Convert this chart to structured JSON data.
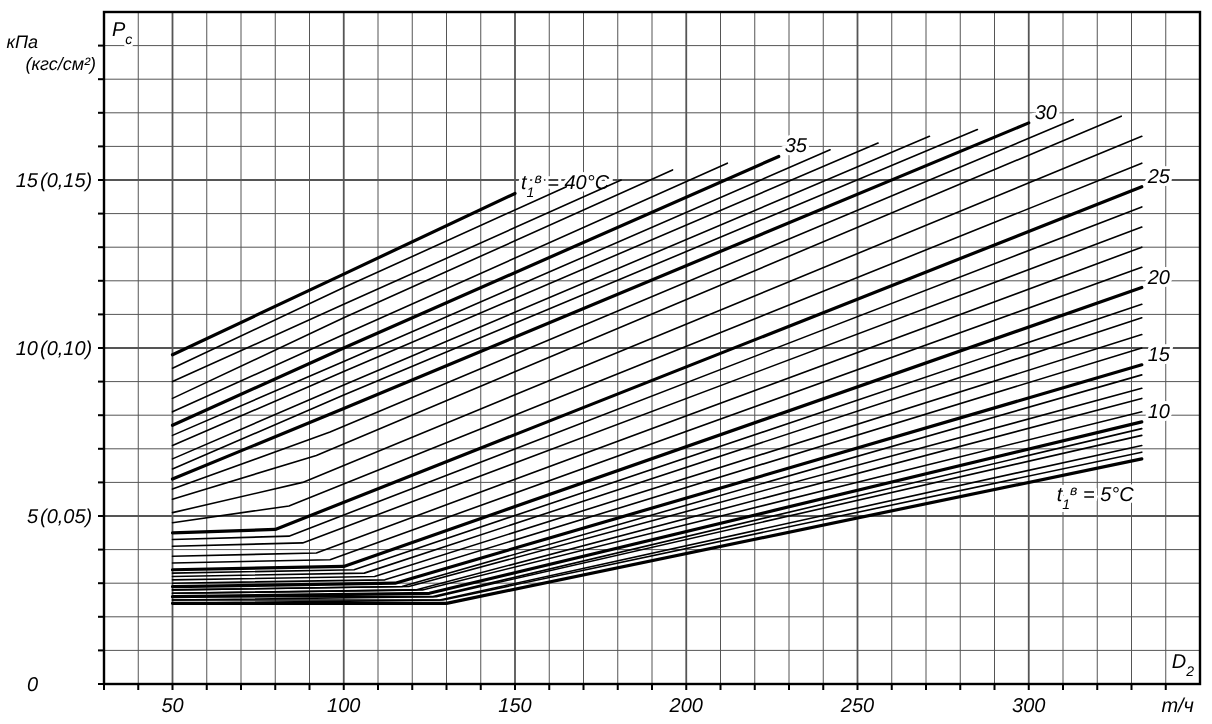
{
  "chart_data": {
    "type": "line",
    "ylabel": "кПа",
    "y2label": "(кгс/см²)",
    "xlabel": "D$_{2}$ т/ч",
    "annotations": [
      "P$_{c}$"
    ],
    "xlim": [
      30,
      350
    ],
    "ylim": [
      0,
      20
    ],
    "xticks": [
      {
        "value": 30,
        "label": null
      },
      {
        "value": 40,
        "label": null
      },
      50,
      {
        "value": 60,
        "label": null
      },
      {
        "value": 70,
        "label": null
      },
      {
        "value": 80,
        "label": null
      },
      {
        "value": 90,
        "label": null
      },
      100,
      {
        "value": 110,
        "label": null
      },
      {
        "value": 120,
        "label": null
      },
      {
        "value": 130,
        "label": null
      },
      {
        "value": 140,
        "label": null
      },
      150,
      {
        "value": 160,
        "label": null
      },
      {
        "value": 170,
        "label": null
      },
      {
        "value": 180,
        "label": null
      },
      {
        "value": 190,
        "label": null
      },
      200,
      {
        "value": 210,
        "label": null
      },
      {
        "value": 220,
        "label": null
      },
      {
        "value": 230,
        "label": null
      },
      {
        "value": 240,
        "label": null
      },
      250,
      {
        "value": 260,
        "label": null
      },
      {
        "value": 270,
        "label": null
      },
      {
        "value": 280,
        "label": null
      },
      {
        "value": 290,
        "label": null
      },
      300,
      {
        "value": 310,
        "label": null
      },
      {
        "value": 320,
        "label": null
      },
      {
        "value": 330,
        "label": null
      },
      {
        "value": 340,
        "label": null
      }
    ],
    "yticks": [
      0,
      {
        "value": 1,
        "label": null
      },
      {
        "value": 2,
        "label": null
      },
      {
        "value": 3,
        "label": null
      },
      {
        "value": 4,
        "label": null
      },
      5,
      {
        "value": 6,
        "label": null
      },
      {
        "value": 7,
        "label": null
      },
      {
        "value": 8,
        "label": null
      },
      {
        "value": 9,
        "label": null
      },
      10,
      {
        "value": 11,
        "label": null
      },
      {
        "value": 12,
        "label": null
      },
      {
        "value": 13,
        "label": null
      },
      {
        "value": 14,
        "label": null
      },
      15,
      {
        "value": 16,
        "label": null
      },
      {
        "value": 17,
        "label": null
      },
      {
        "value": 18,
        "label": null
      },
      {
        "value": 19,
        "label": null
      }
    ],
    "y2lim": [
      0,
      0.2
    ],
    "y2ticks": [
      {
        "value": 0.05,
        "label": "(0,05)"
      },
      {
        "value": 0.1,
        "label": "(0,10)"
      },
      {
        "value": 0.15,
        "label": "(0,15)"
      }
    ],
    "grid": true,
    "marker": "none",
    "line_style": "solid",
    "series": [
      {
        "name": "t$_{1}$$^{в}$ = 40°C",
        "color": "#000000",
        "x": [
          50,
          100,
          150
        ],
        "values": [
          9.8,
          12.2,
          14.6
        ]
      },
      {
        "color": "#000000",
        "x": [
          50,
          100,
          165
        ],
        "values": [
          9.4,
          11.8,
          14.8
        ]
      },
      {
        "color": "#000000",
        "x": [
          50,
          100,
          181
        ],
        "values": [
          9.0,
          11.3,
          15.0
        ]
      },
      {
        "color": "#000000",
        "x": [
          50,
          100,
          196
        ],
        "values": [
          8.5,
          10.9,
          15.3
        ]
      },
      {
        "color": "#000000",
        "x": [
          50,
          100,
          212
        ],
        "values": [
          8.1,
          10.4,
          15.5
        ]
      },
      {
        "name": "35",
        "color": "#000000",
        "x": [
          50,
          100,
          227
        ],
        "values": [
          7.7,
          10.0,
          15.7
        ]
      },
      {
        "color": "#000000",
        "x": [
          50,
          100,
          242
        ],
        "values": [
          7.4,
          9.6,
          15.9
        ]
      },
      {
        "color": "#000000",
        "x": [
          50,
          100,
          256
        ],
        "values": [
          7.1,
          9.3,
          16.1
        ]
      },
      {
        "color": "#000000",
        "x": [
          50,
          100,
          271
        ],
        "values": [
          6.7,
          8.9,
          16.3
        ]
      },
      {
        "color": "#000000",
        "x": [
          50,
          100,
          285
        ],
        "values": [
          6.4,
          8.6,
          16.5
        ]
      },
      {
        "name": "30",
        "color": "#000000",
        "x": [
          50,
          100,
          300
        ],
        "values": [
          6.1,
          8.2,
          16.7
        ]
      },
      {
        "color": "#000000",
        "x": [
          50,
          96,
          313
        ],
        "values": [
          5.8,
          7.5,
          16.8
        ]
      },
      {
        "color": "#000000",
        "x": [
          50,
          92,
          327
        ],
        "values": [
          5.5,
          6.8,
          16.9
        ]
      },
      {
        "color": "#000000",
        "x": [
          50,
          88,
          333
        ],
        "values": [
          5.1,
          6.0,
          16.3
        ]
      },
      {
        "color": "#000000",
        "x": [
          50,
          84,
          333
        ],
        "values": [
          4.8,
          5.3,
          15.5
        ]
      },
      {
        "name": "25",
        "color": "#000000",
        "x": [
          50,
          80,
          333
        ],
        "values": [
          4.5,
          4.6,
          14.8
        ]
      },
      {
        "color": "#000000",
        "x": [
          50,
          84,
          333
        ],
        "values": [
          4.3,
          4.4,
          14.2
        ]
      },
      {
        "color": "#000000",
        "x": [
          50,
          88,
          333
        ],
        "values": [
          4.1,
          4.2,
          13.6
        ]
      },
      {
        "color": "#000000",
        "x": [
          50,
          92,
          333
        ],
        "values": [
          3.8,
          3.9,
          13.0
        ]
      },
      {
        "color": "#000000",
        "x": [
          50,
          96,
          333
        ],
        "values": [
          3.6,
          3.7,
          12.4
        ]
      },
      {
        "name": "20",
        "color": "#000000",
        "x": [
          50,
          100,
          333
        ],
        "values": [
          3.4,
          3.5,
          11.8
        ]
      },
      {
        "color": "#000000",
        "x": [
          50,
          103,
          333
        ],
        "values": [
          3.3,
          3.4,
          11.3
        ]
      },
      {
        "color": "#000000",
        "x": [
          50,
          106,
          333
        ],
        "values": [
          3.2,
          3.3,
          10.9
        ]
      },
      {
        "color": "#000000",
        "x": [
          50,
          109,
          333
        ],
        "values": [
          3.1,
          3.2,
          10.4
        ]
      },
      {
        "color": "#000000",
        "x": [
          50,
          112,
          333
        ],
        "values": [
          3.0,
          3.1,
          10.0
        ]
      },
      {
        "name": "15",
        "color": "#000000",
        "x": [
          50,
          115,
          333
        ],
        "values": [
          2.9,
          3.0,
          9.5
        ]
      },
      {
        "color": "#000000",
        "x": [
          50,
          117,
          333
        ],
        "values": [
          2.8,
          2.9,
          9.2
        ]
      },
      {
        "color": "#000000",
        "x": [
          50,
          119,
          333
        ],
        "values": [
          2.8,
          2.9,
          8.8
        ]
      },
      {
        "color": "#000000",
        "x": [
          50,
          121,
          333
        ],
        "values": [
          2.7,
          2.8,
          8.5
        ]
      },
      {
        "color": "#000000",
        "x": [
          50,
          123,
          333
        ],
        "values": [
          2.7,
          2.8,
          8.1
        ]
      },
      {
        "name": "10",
        "color": "#000000",
        "x": [
          50,
          125,
          333
        ],
        "values": [
          2.6,
          2.7,
          7.8
        ]
      },
      {
        "color": "#000000",
        "x": [
          50,
          126,
          333
        ],
        "values": [
          2.6,
          2.6,
          7.6
        ]
      },
      {
        "color": "#000000",
        "x": [
          50,
          127,
          333
        ],
        "values": [
          2.5,
          2.6,
          7.4
        ]
      },
      {
        "color": "#000000",
        "x": [
          50,
          128,
          333
        ],
        "values": [
          2.5,
          2.5,
          7.1
        ]
      },
      {
        "color": "#000000",
        "x": [
          50,
          129,
          333
        ],
        "values": [
          2.4,
          2.5,
          6.9
        ]
      },
      {
        "name": "t$_{1}$$^{в}$ = 5°C",
        "color": "#000000",
        "x": [
          50,
          130,
          333
        ],
        "values": [
          2.4,
          2.4,
          6.7
        ]
      }
    ]
  }
}
